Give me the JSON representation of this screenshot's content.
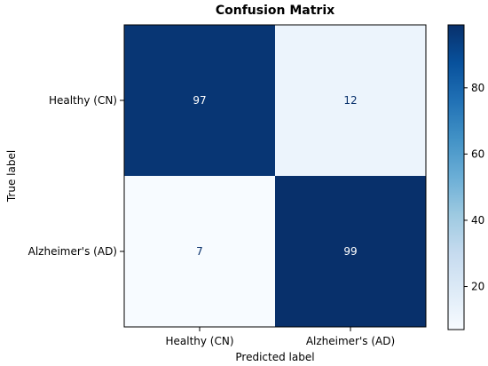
{
  "chart_data": {
    "type": "heatmap",
    "title": "Confusion Matrix",
    "xlabel": "Predicted label",
    "ylabel": "True label",
    "x_categories": [
      "Healthy (CN)",
      "Alzheimer's (AD)"
    ],
    "y_categories": [
      "Healthy (CN)",
      "Alzheimer's (AD)"
    ],
    "values": [
      [
        97,
        12
      ],
      [
        7,
        99
      ]
    ],
    "colormap": "Blues",
    "colormap_stops": [
      "#f7fbff",
      "#deebf7",
      "#c6dbef",
      "#9ecae1",
      "#6baed6",
      "#4292c6",
      "#2171b5",
      "#08519c",
      "#08306b"
    ],
    "value_range": [
      7,
      99
    ],
    "colorbar_ticks": [
      20,
      40,
      60,
      80
    ],
    "text_color_light": "#ffffff",
    "text_color_dark": "#08306b"
  }
}
